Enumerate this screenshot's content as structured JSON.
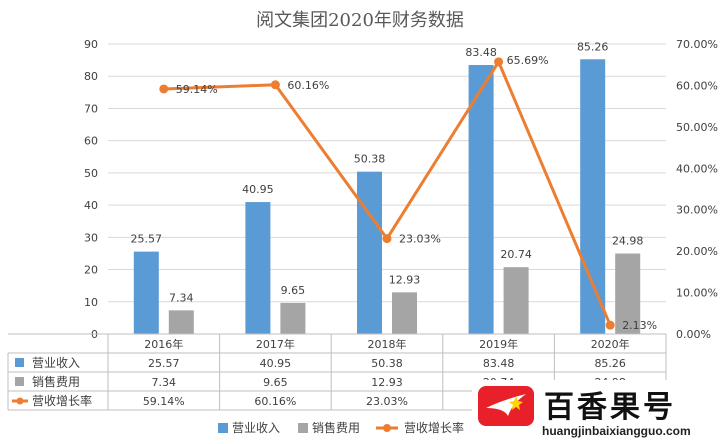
{
  "chart_data": {
    "type": "bar",
    "title": "阅文集团2020年财务数据",
    "categories": [
      "2016年",
      "2017年",
      "2018年",
      "2019年",
      "2020年"
    ],
    "series": [
      {
        "name": "营业收入",
        "kind": "bar",
        "axis": "left",
        "color": "#5b9bd5",
        "values": [
          25.57,
          40.95,
          50.38,
          83.48,
          85.26
        ],
        "labels": [
          "25.57",
          "40.95",
          "50.38",
          "83.48",
          "85.26"
        ]
      },
      {
        "name": "销售费用",
        "kind": "bar",
        "axis": "left",
        "color": "#a5a5a5",
        "values": [
          7.34,
          9.65,
          12.93,
          20.74,
          24.98
        ],
        "labels": [
          "7.34",
          "9.65",
          "12.93",
          "20.74",
          "24.98"
        ]
      },
      {
        "name": "营收增长率",
        "kind": "line",
        "axis": "right",
        "color": "#ed7d31",
        "values": [
          59.14,
          60.16,
          23.03,
          65.69,
          2.13
        ],
        "labels": [
          "59.14%",
          "60.16%",
          "23.03%",
          "65.69%",
          "2.13%"
        ]
      }
    ],
    "y_left": {
      "min": 0,
      "max": 90,
      "ticks": [
        "0",
        "10",
        "20",
        "30",
        "40",
        "50",
        "60",
        "70",
        "80",
        "90"
      ]
    },
    "y_right": {
      "min": 0,
      "max": 70,
      "ticks": [
        "0.00%",
        "10.00%",
        "20.00%",
        "30.00%",
        "40.00%",
        "50.00%",
        "60.00%",
        "70.00%"
      ]
    },
    "grid": true,
    "data_table": true,
    "legend": "bottom"
  },
  "watermark": {
    "title": "百香果号",
    "url": "huangjinbaixiangguo.com"
  }
}
